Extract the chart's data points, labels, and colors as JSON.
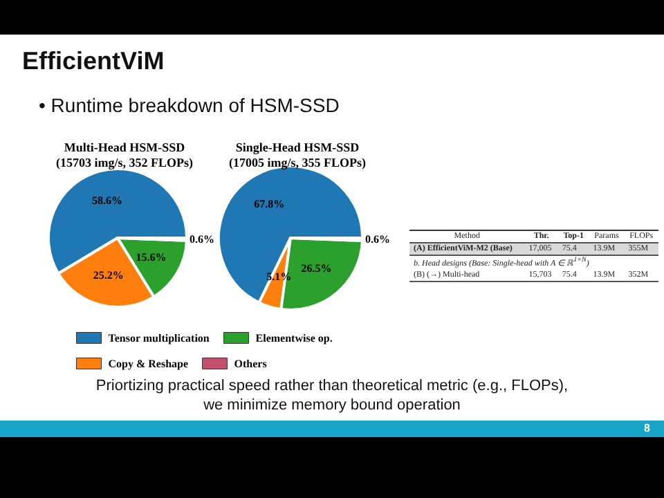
{
  "chart_data": [
    {
      "type": "pie",
      "title": "Multi-Head HSM-SSD\n(15703 img/s, 352 FLOPs)",
      "categories": [
        "Tensor multiplication",
        "Copy & Reshape",
        "Elementwise op.",
        "Others"
      ],
      "values": [
        58.6,
        25.2,
        15.6,
        0.6
      ],
      "colors": [
        "#1f77b4",
        "#ff7f0e",
        "#2ca02c",
        "#c0506e"
      ],
      "value_labels": [
        "58.6%",
        "25.2%",
        "15.6%",
        "0.6%"
      ],
      "legend": "bottom",
      "annotations": [
        "EfficientViM",
        "• Runtime breakdown of HSM-SSD",
        "Priortizing practical speed rather than theoretical metric (e.g., FLOPs),\nwe minimize memory bound operation",
        "8"
      ]
    },
    {
      "type": "pie",
      "title": "Single-Head HSM-SSD\n(17005 img/s, 355 FLOPs)",
      "values": [
        67.8,
        5.1,
        26.5,
        0.6
      ],
      "colors": [
        "#1f77b4",
        "#ff7f0e",
        "#2ca02c",
        "#c0506e"
      ],
      "value_labels": [
        "67.8%",
        "5.1%",
        "26.5%",
        "0.6%"
      ]
    },
    {
      "type": "other",
      "categories": [
        "Method",
        "Thr.",
        "Top-1",
        "Params",
        "FLOPs"
      ],
      "cell_labels": [
        [
          "(A) EfficientViM-M2 (Base)",
          "17,005",
          "75.4",
          "13.9M",
          "355M"
        ],
        [
          "b. Head designs (Base: Single-head with A ∈ ℝ$^{1×N}$)",
          null,
          null,
          null,
          null
        ],
        [
          "(B) (→) Multi-head",
          "15,703",
          "75.4",
          "13.9M",
          "352M"
        ]
      ]
    }
  ]
}
